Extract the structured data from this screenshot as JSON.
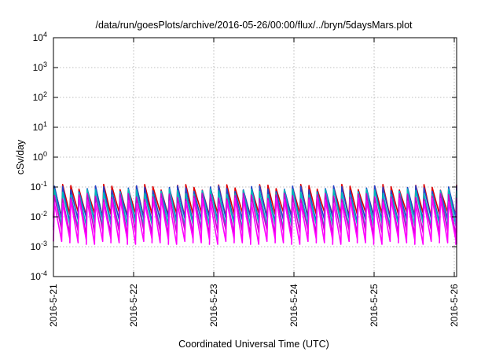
{
  "chart_data": {
    "type": "line",
    "title": "/data/run/goesPlots/archive/2016-05-26/00:00/flux/../bryn/5daysMars.plot",
    "xlabel": "Coordinated Universal Time (UTC)",
    "ylabel": "cSv/day",
    "y_scale": "log",
    "ylim": [
      0.0001,
      10000
    ],
    "xlim": [
      "2016-05-21",
      "2016-05-26 01:00"
    ],
    "x_tick_labels": [
      "2016-5-21",
      "2016-5-22",
      "2016-5-23",
      "2016-5-24",
      "2016-5-25",
      "2016-5-26"
    ],
    "y_tick_labels": [
      {
        "base": "10",
        "exp": "-4"
      },
      {
        "base": "10",
        "exp": "-3"
      },
      {
        "base": "10",
        "exp": "-2"
      },
      {
        "base": "10",
        "exp": "-1"
      },
      {
        "base": "10",
        "exp": "0"
      },
      {
        "base": "10",
        "exp": "1"
      },
      {
        "base": "10",
        "exp": "2"
      },
      {
        "base": "10",
        "exp": "3"
      },
      {
        "base": "10",
        "exp": "4"
      }
    ],
    "grid": true,
    "pattern": "sawtooth, ~9-10 cycles per day",
    "series_colors": [
      "#dd0000",
      "#2244cc",
      "#00bbbb",
      "#cc00cc",
      "#ff00ff"
    ],
    "series": [
      {
        "values_peak": 0.1,
        "values_trough": 0.012
      },
      {
        "values_peak": 0.09,
        "values_trough": 0.008
      },
      {
        "values_peak": 0.07,
        "values_trough": 0.005
      },
      {
        "values_peak": 0.05,
        "values_trough": 0.003
      },
      {
        "values_peak": 0.035,
        "values_trough": 0.0015
      }
    ]
  }
}
